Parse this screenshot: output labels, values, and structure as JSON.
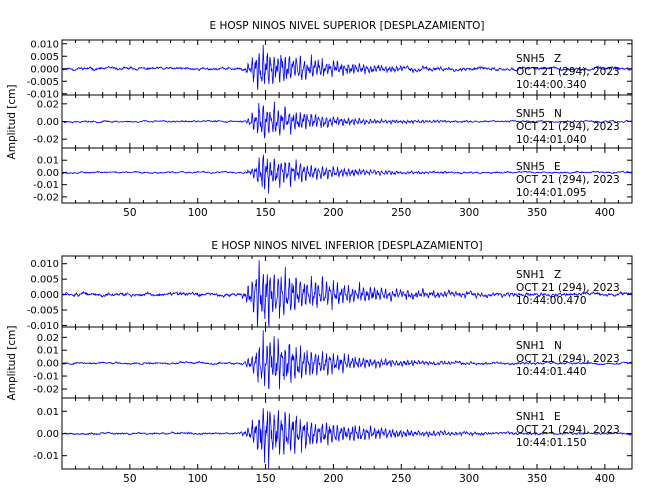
{
  "colors": {
    "trace": "#0000ff",
    "axis": "#000000",
    "background": "#ffffff"
  },
  "chart_data": [
    {
      "type": "line",
      "title": "E HOSP NINOS NIVEL SUPERIOR [DESPLAZAMIENTO]",
      "ylabel": "Amplitud [cm]",
      "xlim": [
        0,
        420
      ],
      "xticks": [
        50,
        100,
        150,
        200,
        250,
        300,
        350,
        400
      ],
      "grid": false,
      "panels": [
        {
          "station": "SNH5",
          "component": "Z",
          "date": "OCT 21 (294), 2023",
          "time": "10:44:00.340",
          "ylim": [
            -0.0105,
            0.0115
          ],
          "yticks": [
            {
              "v": 0.01,
              "label": "0.010"
            },
            {
              "v": 0.005,
              "label": "0.005"
            },
            {
              "v": 0.0,
              "label": "0.000"
            },
            {
              "v": -0.005,
              "label": "-0.005"
            },
            {
              "v": -0.01,
              "label": "-0.010"
            }
          ],
          "signal": {
            "event_start": 130,
            "peak_time": 145,
            "peak_amp": 0.0095,
            "noise": 0.0006,
            "decay": 45,
            "seed": 11
          }
        },
        {
          "station": "SNH5",
          "component": "N",
          "date": "OCT 21 (294), 2023",
          "time": "10:44:01.040",
          "ylim": [
            -0.03,
            0.03
          ],
          "yticks": [
            {
              "v": 0.02,
              "label": "0.02"
            },
            {
              "v": 0.0,
              "label": "0.00"
            },
            {
              "v": -0.02,
              "label": "-0.02"
            }
          ],
          "signal": {
            "event_start": 132,
            "peak_time": 145,
            "peak_amp": 0.024,
            "noise": 0.001,
            "decay": 40,
            "seed": 23
          }
        },
        {
          "station": "SNH5",
          "component": "E",
          "date": "OCT 21 (294), 2023",
          "time": "10:44:01.095",
          "ylim": [
            -0.025,
            0.02
          ],
          "yticks": [
            {
              "v": 0.01,
              "label": "0.01"
            },
            {
              "v": 0.0,
              "label": "0.00"
            },
            {
              "v": -0.01,
              "label": "-0.01"
            },
            {
              "v": -0.02,
              "label": "-0.02"
            }
          ],
          "signal": {
            "event_start": 132,
            "peak_time": 148,
            "peak_amp": 0.017,
            "noise": 0.0007,
            "decay": 40,
            "seed": 37
          }
        }
      ]
    },
    {
      "type": "line",
      "title": "E HOSP NINOS NIVEL INFERIOR [DESPLAZAMIENTO]",
      "ylabel": "Amplitud [cm]",
      "xlim": [
        0,
        420
      ],
      "xticks": [
        50,
        100,
        150,
        200,
        250,
        300,
        350,
        400
      ],
      "grid": false,
      "panels": [
        {
          "station": "SNH1",
          "component": "Z",
          "date": "OCT 21 (294), 2023",
          "time": "10:44:00.470",
          "ylim": [
            -0.0105,
            0.0125
          ],
          "yticks": [
            {
              "v": 0.01,
              "label": "0.010"
            },
            {
              "v": 0.005,
              "label": "0.005"
            },
            {
              "v": 0.0,
              "label": "0.000"
            },
            {
              "v": -0.005,
              "label": "-0.005"
            },
            {
              "v": -0.01,
              "label": "-0.010"
            }
          ],
          "signal": {
            "event_start": 128,
            "peak_time": 145,
            "peak_amp": 0.0105,
            "noise": 0.0006,
            "decay": 55,
            "seed": 51
          }
        },
        {
          "station": "SNH1",
          "component": "N",
          "date": "OCT 21 (294), 2023",
          "time": "10:44:01.440",
          "ylim": [
            -0.027,
            0.028
          ],
          "yticks": [
            {
              "v": 0.02,
              "label": "0.02"
            },
            {
              "v": 0.01,
              "label": "0.01"
            },
            {
              "v": 0.0,
              "label": "0.00"
            },
            {
              "v": -0.01,
              "label": "-0.01"
            },
            {
              "v": -0.02,
              "label": "-0.02"
            }
          ],
          "signal": {
            "event_start": 130,
            "peak_time": 148,
            "peak_amp": 0.024,
            "noise": 0.0008,
            "decay": 45,
            "seed": 67
          }
        },
        {
          "station": "SNH1",
          "component": "E",
          "date": "OCT 21 (294), 2023",
          "time": "10:44:01.150",
          "ylim": [
            -0.016,
            0.016
          ],
          "yticks": [
            {
              "v": 0.01,
              "label": "0.01"
            },
            {
              "v": 0.0,
              "label": "0.00"
            },
            {
              "v": -0.01,
              "label": "-0.01"
            }
          ],
          "signal": {
            "event_start": 128,
            "peak_time": 148,
            "peak_amp": 0.014,
            "noise": 0.0005,
            "decay": 50,
            "seed": 79
          }
        }
      ]
    }
  ]
}
